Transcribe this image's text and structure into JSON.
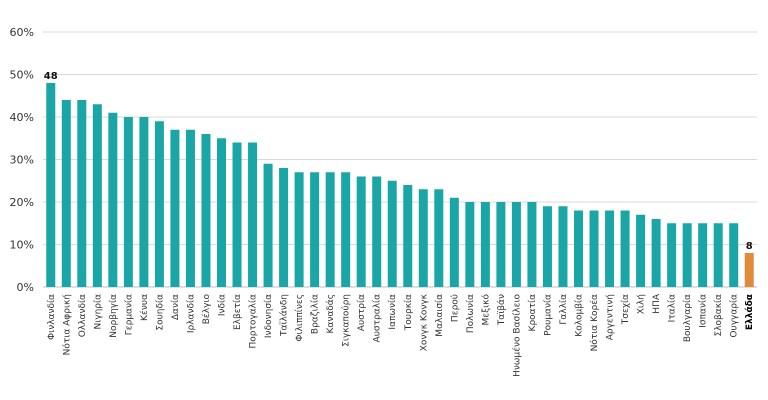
{
  "chart_data": {
    "type": "bar",
    "title": "",
    "xlabel": "",
    "ylabel": "",
    "ylim": [
      0,
      60
    ],
    "yticks": [
      0,
      10,
      20,
      30,
      40,
      50,
      60
    ],
    "ytick_suffix": "%",
    "grid": true,
    "colors": {
      "default": "#1aa6a6",
      "highlight": "#e08a3c"
    },
    "highlight_category": "Ελλάδα",
    "data_labels": [
      {
        "category": "Φινλανδία",
        "text": "48"
      },
      {
        "category": "Ελλάδα",
        "text": "8"
      }
    ],
    "categories": [
      "Φινλανδία",
      "Νότια Αφρική",
      "Ολλανδία",
      "Νιγηρία",
      "Νορβηγία",
      "Γερμανία",
      "Κένυα",
      "Σουηδία",
      "Δανία",
      "Ιρλανδία",
      "Βέλγιο",
      "Ινδία",
      "Ελβετία",
      "Πορτογαλία",
      "Ινδονησία",
      "Ταϊλάνδη",
      "Φιλιππίνες",
      "Βραζιλία",
      "Καναδάς",
      "Σιγκαπούρη",
      "Αυστρία",
      "Αυστραλία",
      "Ιαπωνία",
      "Τουρκία",
      "Χονγκ Κονγκ",
      "Μαλαισία",
      "Περού",
      "Πολωνία",
      "Μεξικό",
      "Ταϊβάν",
      "Ηνωμένο Βασίλειο",
      "Κροατία",
      "Ρουμανία",
      "Γαλλία",
      "Κολομβία",
      "Νότια Κορέα",
      "Αργεντινή",
      "Τσεχία",
      "Χιλή",
      "ΗΠΑ",
      "Ιταλία",
      "Βουλγαρία",
      "Ισπανία",
      "Σλοβακία",
      "Ουγγαρία",
      "Ελλάδα"
    ],
    "values": [
      48,
      44,
      44,
      43,
      41,
      40,
      40,
      39,
      37,
      37,
      36,
      35,
      34,
      34,
      29,
      28,
      27,
      27,
      27,
      27,
      26,
      26,
      25,
      24,
      23,
      23,
      21,
      20,
      20,
      20,
      20,
      20,
      19,
      19,
      18,
      18,
      18,
      18,
      17,
      16,
      15,
      15,
      15,
      15,
      15,
      8
    ]
  }
}
